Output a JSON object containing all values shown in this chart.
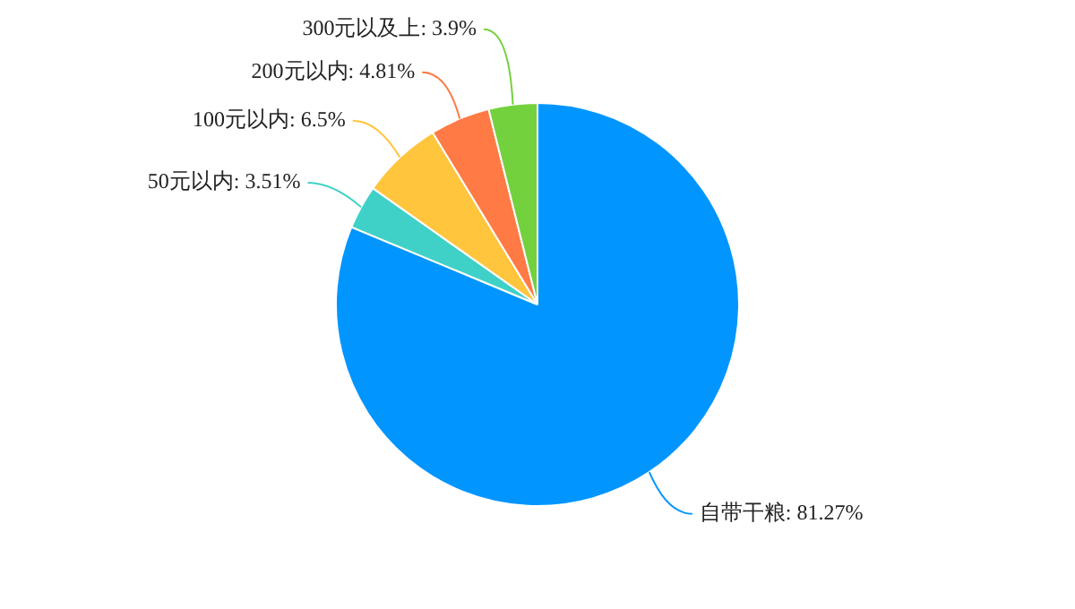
{
  "chart_data": {
    "type": "pie",
    "categories": [
      "自带干粮",
      "50元以内",
      "100元以内",
      "200元以内",
      "300元以及上"
    ],
    "values": [
      81.27,
      3.51,
      6.5,
      4.81,
      3.9
    ],
    "value_labels": [
      "81.27%",
      "3.51%",
      "6.5%",
      "4.81%",
      "3.9%"
    ],
    "colors": [
      "#0095ff",
      "#3fd1c7",
      "#ffc53d",
      "#ff7a45",
      "#73d13d"
    ],
    "legend": false
  }
}
